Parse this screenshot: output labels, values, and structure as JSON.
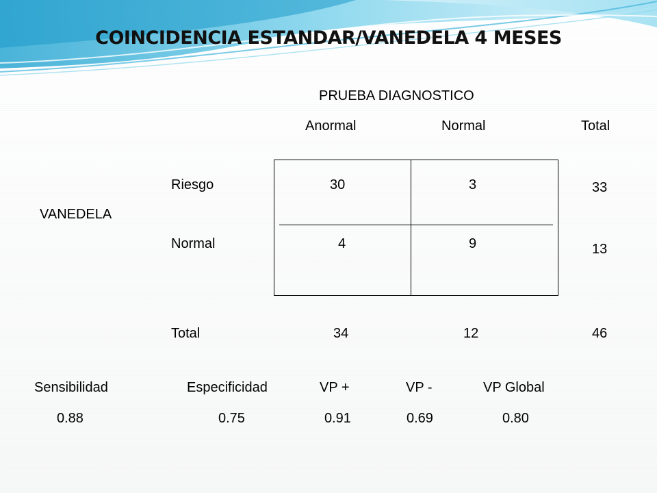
{
  "title": "COINCIDENCIA ESTANDAR/VANEDELA 4 MESES",
  "header": {
    "group_label": "PRUEBA DIAGNOSTICO",
    "col_anormal": "Anormal",
    "col_normal": "Normal",
    "col_total": "Total"
  },
  "row_group_label": "VANEDELA",
  "rows": [
    {
      "label": "Riesgo",
      "anormal": "30",
      "normal": "3",
      "total": "33"
    },
    {
      "label": "Normal",
      "anormal": "4",
      "normal": "9",
      "total": "13"
    }
  ],
  "totals": {
    "label": "Total",
    "anormal": "34",
    "normal": "12",
    "total": "46"
  },
  "metrics": [
    {
      "label": "Sensibilidad",
      "value": "0.88"
    },
    {
      "label": "Especificidad",
      "value": "0.75"
    },
    {
      "label": "VP +",
      "value": "0.91"
    },
    {
      "label": "VP -",
      "value": "0.69"
    },
    {
      "label": "VP Global",
      "value": "0.80"
    }
  ],
  "colors": {
    "wave_light": "#bfe9f5",
    "wave_mid": "#5fc8e6",
    "wave_dark": "#2aa6d2"
  }
}
